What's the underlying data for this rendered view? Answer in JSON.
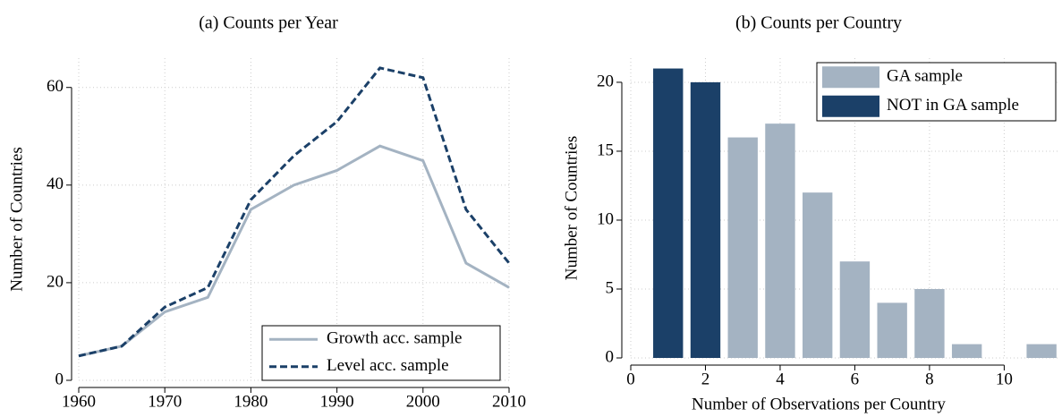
{
  "chart_data": [
    {
      "type": "line",
      "title": "(a) Counts per Year",
      "y_label": "Number of Countries",
      "x": [
        1960,
        1965,
        1970,
        1975,
        1980,
        1985,
        1990,
        1995,
        2000,
        2005,
        2010
      ],
      "series": [
        {
          "name": "Growth acc. sample",
          "color": "#a4b3c2",
          "line_style": "solid",
          "values": [
            5,
            7,
            14,
            17,
            35,
            40,
            43,
            48,
            45,
            24,
            19
          ]
        },
        {
          "name": "Level acc. sample",
          "color": "#1b4068",
          "line_style": "dashed",
          "values": [
            5,
            7,
            15,
            19,
            37,
            46,
            53,
            64,
            62,
            35,
            24
          ]
        }
      ],
      "xlim": [
        1960,
        2010
      ],
      "xticks": [
        1960,
        1970,
        1980,
        1990,
        2000,
        2010
      ],
      "ylim": [
        0,
        66
      ],
      "yticks": [
        0,
        20,
        40,
        60
      ],
      "grid": true,
      "legend": "lower right"
    },
    {
      "type": "bar",
      "title": "(b) Counts per Country",
      "y_label": "Number of Countries",
      "x_label": "Number of Observations per Country",
      "series": [
        {
          "name": "GA sample",
          "color": "#a4b3c2",
          "x": [
            3,
            4,
            5,
            6,
            7,
            8,
            9,
            11
          ],
          "values": [
            16,
            17,
            12,
            7,
            4,
            5,
            1,
            1
          ]
        },
        {
          "name": "NOT in GA sample",
          "color": "#1b4068",
          "x": [
            1,
            2
          ],
          "values": [
            21,
            20
          ]
        }
      ],
      "xlim": [
        0,
        11.5
      ],
      "xticks": [
        0,
        2,
        4,
        6,
        8,
        10
      ],
      "ylim": [
        0,
        21.75
      ],
      "yticks": [
        0,
        5,
        10,
        15,
        20
      ],
      "grid": true,
      "legend": "upper right"
    }
  ]
}
